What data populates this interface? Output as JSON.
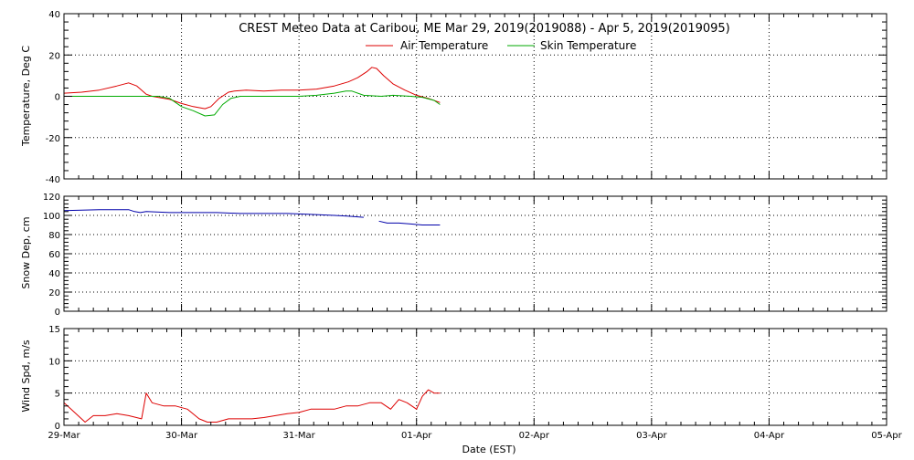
{
  "title": "CREST Meteo Data at Caribou, ME   Mar 29, 2019(2019088) - Apr  5, 2019(2019095)",
  "x_axis": {
    "label": "Date (EST)",
    "tick_labels": [
      "29-Mar",
      "30-Mar",
      "31-Mar",
      "01-Apr",
      "02-Apr",
      "03-Apr",
      "04-Apr",
      "05-Apr"
    ],
    "range_days": [
      0,
      7
    ]
  },
  "colors": {
    "air": "#dd0000",
    "skin": "#00aa00",
    "snow": "#0000aa",
    "wind": "#dd0000",
    "axis": "#000000",
    "grid": "#000000"
  },
  "chart_data": [
    {
      "type": "line",
      "ylabel": "Temperature, Deg C",
      "ylim": [
        -40,
        40
      ],
      "y_ticks": [
        -40,
        -20,
        0,
        20,
        40
      ],
      "grid": true,
      "legend": "top-center",
      "series": [
        {
          "name": "Air Temperature",
          "color": "#dd0000",
          "x": [
            0.0,
            0.15,
            0.3,
            0.45,
            0.55,
            0.62,
            0.7,
            0.75,
            0.8,
            0.9,
            1.0,
            1.1,
            1.2,
            1.25,
            1.32,
            1.4,
            1.45,
            1.55,
            1.7,
            1.85,
            2.0,
            2.15,
            2.3,
            2.42,
            2.5,
            2.58,
            2.62,
            2.66,
            2.72,
            2.8,
            2.9,
            3.0,
            3.1,
            3.2
          ],
          "y": [
            1.5,
            2.0,
            3.0,
            5.0,
            6.5,
            5.0,
            1.0,
            0.0,
            -0.5,
            -1.5,
            -3.5,
            -5.0,
            -6.0,
            -5.0,
            -1.0,
            2.0,
            2.5,
            3.0,
            2.5,
            3.0,
            3.0,
            3.5,
            5.0,
            7.0,
            9.0,
            12.0,
            14.0,
            13.5,
            10.0,
            6.0,
            3.0,
            0.5,
            -1.0,
            -3.0
          ]
        },
        {
          "name": "Skin Temperature",
          "color": "#00aa00",
          "x": [
            0.0,
            0.2,
            0.4,
            0.6,
            0.8,
            0.9,
            1.0,
            1.1,
            1.2,
            1.28,
            1.35,
            1.42,
            1.5,
            1.7,
            1.85,
            2.0,
            2.15,
            2.3,
            2.4,
            2.45,
            2.55,
            2.7,
            2.8,
            2.95,
            3.05,
            3.15,
            3.2
          ],
          "y": [
            0,
            0,
            0,
            0,
            0,
            -1.0,
            -5.0,
            -7.0,
            -9.5,
            -9.0,
            -4.0,
            -1.0,
            0,
            0,
            0,
            0,
            0.5,
            1.5,
            2.5,
            2.5,
            0.5,
            0,
            0.5,
            0,
            -0.5,
            -2.0,
            -4.0
          ]
        }
      ]
    },
    {
      "type": "line",
      "ylabel": "Snow Dep, cm",
      "ylim": [
        0,
        120
      ],
      "y_ticks": [
        0,
        20,
        40,
        60,
        80,
        100,
        120
      ],
      "grid": true,
      "series": [
        {
          "name": "",
          "color": "#0000aa",
          "segments": [
            {
              "x": [
                0.0,
                0.3,
                0.55,
                0.6,
                0.65,
                0.7,
                0.9,
                1.1,
                1.3,
                1.5,
                1.7,
                1.9,
                2.1,
                2.3,
                2.45,
                2.55
              ],
              "y": [
                105,
                106,
                106,
                104,
                103,
                104,
                103,
                103,
                103,
                102,
                102,
                102,
                101,
                100,
                99,
                98
              ]
            },
            {
              "x": [
                2.68,
                2.75,
                2.85,
                2.95,
                3.05,
                3.2
              ],
              "y": [
                94,
                92,
                92,
                91,
                90,
                90
              ]
            }
          ]
        }
      ]
    },
    {
      "type": "line",
      "ylabel": "Wind Spd, m/s",
      "ylim": [
        0,
        15
      ],
      "y_ticks": [
        0,
        5,
        10,
        15
      ],
      "grid": true,
      "series": [
        {
          "name": "",
          "color": "#dd0000",
          "x": [
            0.0,
            0.06,
            0.12,
            0.18,
            0.25,
            0.35,
            0.45,
            0.55,
            0.66,
            0.7,
            0.75,
            0.85,
            0.95,
            1.05,
            1.15,
            1.22,
            1.3,
            1.4,
            1.5,
            1.6,
            1.7,
            1.8,
            1.9,
            2.0,
            2.1,
            2.2,
            2.3,
            2.4,
            2.5,
            2.6,
            2.7,
            2.78,
            2.85,
            2.92,
            3.0,
            3.05,
            3.1,
            3.15,
            3.2
          ],
          "y": [
            3.5,
            2.5,
            1.5,
            0.5,
            1.5,
            1.5,
            1.8,
            1.5,
            1.0,
            5.0,
            3.5,
            3.0,
            3.0,
            2.5,
            1.0,
            0.5,
            0.5,
            1.0,
            1.0,
            1.0,
            1.2,
            1.5,
            1.8,
            2.0,
            2.5,
            2.5,
            2.5,
            3.0,
            3.0,
            3.5,
            3.5,
            2.5,
            4.0,
            3.5,
            2.5,
            4.5,
            5.5,
            5.0,
            5.0
          ]
        }
      ]
    }
  ]
}
